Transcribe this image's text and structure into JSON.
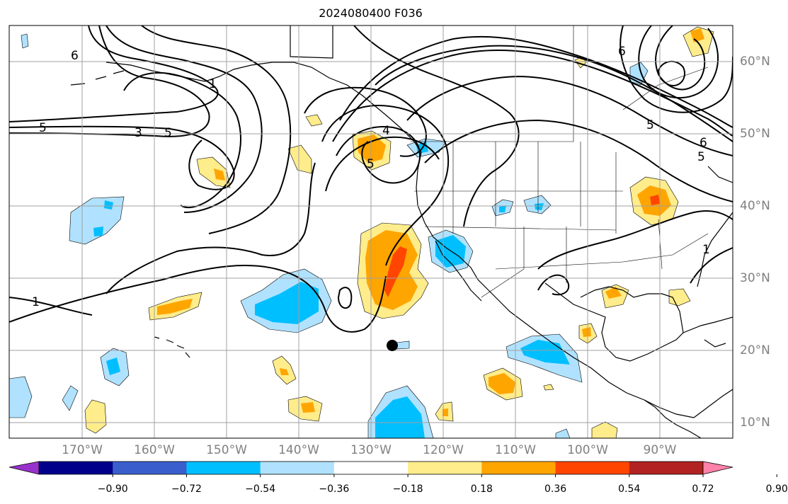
{
  "title": "2024080400 F036",
  "lon_labels": [
    "170°W",
    "160°W",
    "150°W",
    "140°W",
    "130°W",
    "120°W",
    "110°W",
    "100°W",
    "90°W"
  ],
  "lat_labels": [
    "60°N",
    "50°N",
    "40°N",
    "30°N",
    "20°N",
    "10°N"
  ],
  "contour_labels": [
    "6",
    "5",
    "3",
    "5",
    "1",
    "5",
    "4",
    "6",
    "5",
    "6",
    "5",
    "1",
    "1"
  ],
  "colorbar": {
    "ticks": [
      "−0.90",
      "−0.72",
      "−0.54",
      "−0.36",
      "−0.18",
      "0.18",
      "0.36",
      "0.54",
      "0.72",
      "0.90"
    ],
    "colors": [
      "#9932cc",
      "#00008b",
      "#3a5fcd",
      "#00bfff",
      "#b0e2ff",
      "#ffffff",
      "#ffec8b",
      "#ffa500",
      "#ff4500",
      "#b22222",
      "#ff82ab"
    ]
  }
}
